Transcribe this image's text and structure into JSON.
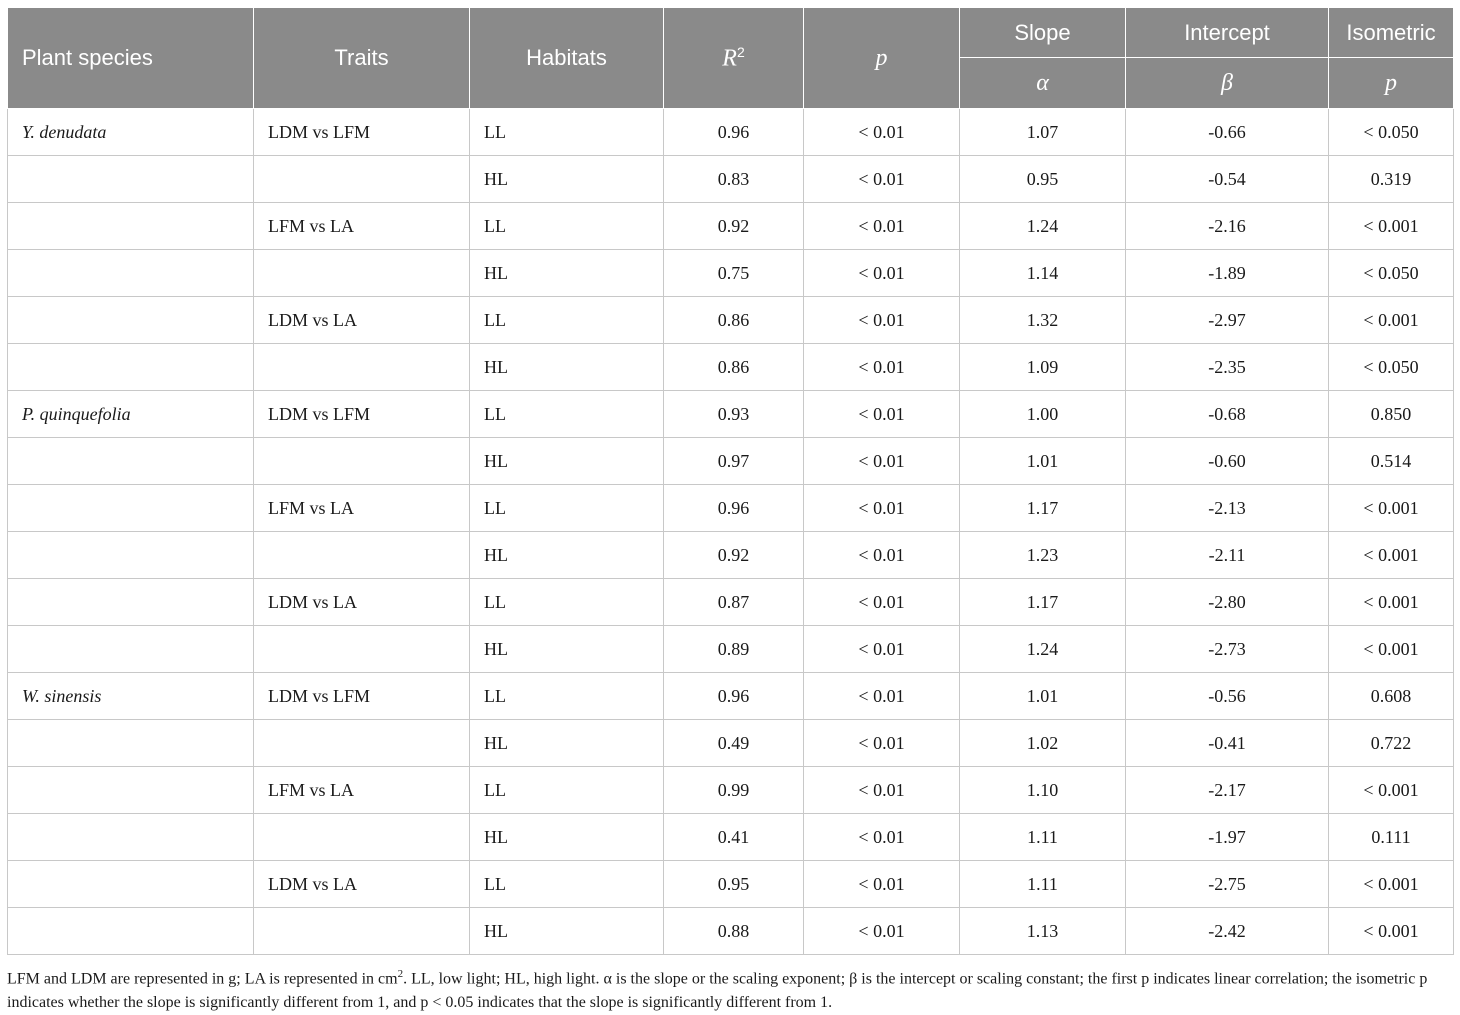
{
  "header": {
    "species": "Plant species",
    "traits": "Traits",
    "habitats": "Habitats",
    "r2_base": "R",
    "r2_sup": "2",
    "p": "p",
    "slope": "Slope",
    "slope_sym": "α",
    "intercept": "Intercept",
    "intercept_sym": "β",
    "isometric": "Isometric",
    "isometric_sym": "p"
  },
  "rows": [
    {
      "species": "Y. denudata",
      "traits": "LDM vs LFM",
      "habitat": "LL",
      "r2": "0.96",
      "p": "< 0.01",
      "slope": "1.07",
      "intercept": "-0.66",
      "iso_p": "< 0.050"
    },
    {
      "species": "",
      "traits": "",
      "habitat": "HL",
      "r2": "0.83",
      "p": "< 0.01",
      "slope": "0.95",
      "intercept": "-0.54",
      "iso_p": "0.319"
    },
    {
      "species": "",
      "traits": "LFM vs LA",
      "habitat": "LL",
      "r2": "0.92",
      "p": "< 0.01",
      "slope": "1.24",
      "intercept": "-2.16",
      "iso_p": "< 0.001"
    },
    {
      "species": "",
      "traits": "",
      "habitat": "HL",
      "r2": "0.75",
      "p": "< 0.01",
      "slope": "1.14",
      "intercept": "-1.89",
      "iso_p": "< 0.050"
    },
    {
      "species": "",
      "traits": "LDM vs LA",
      "habitat": "LL",
      "r2": "0.86",
      "p": "< 0.01",
      "slope": "1.32",
      "intercept": "-2.97",
      "iso_p": "< 0.001"
    },
    {
      "species": "",
      "traits": "",
      "habitat": "HL",
      "r2": "0.86",
      "p": "< 0.01",
      "slope": "1.09",
      "intercept": "-2.35",
      "iso_p": "< 0.050"
    },
    {
      "species": "P. quinquefolia",
      "traits": "LDM vs LFM",
      "habitat": "LL",
      "r2": "0.93",
      "p": "< 0.01",
      "slope": "1.00",
      "intercept": "-0.68",
      "iso_p": "0.850"
    },
    {
      "species": "",
      "traits": "",
      "habitat": "HL",
      "r2": "0.97",
      "p": "< 0.01",
      "slope": "1.01",
      "intercept": "-0.60",
      "iso_p": "0.514"
    },
    {
      "species": "",
      "traits": "LFM vs LA",
      "habitat": "LL",
      "r2": "0.96",
      "p": "< 0.01",
      "slope": "1.17",
      "intercept": "-2.13",
      "iso_p": "< 0.001"
    },
    {
      "species": "",
      "traits": "",
      "habitat": "HL",
      "r2": "0.92",
      "p": "< 0.01",
      "slope": "1.23",
      "intercept": "-2.11",
      "iso_p": "< 0.001"
    },
    {
      "species": "",
      "traits": "LDM vs LA",
      "habitat": "LL",
      "r2": "0.87",
      "p": "< 0.01",
      "slope": "1.17",
      "intercept": "-2.80",
      "iso_p": "< 0.001"
    },
    {
      "species": "",
      "traits": "",
      "habitat": "HL",
      "r2": "0.89",
      "p": "< 0.01",
      "slope": "1.24",
      "intercept": "-2.73",
      "iso_p": "< 0.001"
    },
    {
      "species": "W. sinensis",
      "traits": "LDM vs LFM",
      "habitat": "LL",
      "r2": "0.96",
      "p": "< 0.01",
      "slope": "1.01",
      "intercept": "-0.56",
      "iso_p": "0.608"
    },
    {
      "species": "",
      "traits": "",
      "habitat": "HL",
      "r2": "0.49",
      "p": "< 0.01",
      "slope": "1.02",
      "intercept": "-0.41",
      "iso_p": "0.722"
    },
    {
      "species": "",
      "traits": "LFM vs LA",
      "habitat": "LL",
      "r2": "0.99",
      "p": "< 0.01",
      "slope": "1.10",
      "intercept": "-2.17",
      "iso_p": "< 0.001"
    },
    {
      "species": "",
      "traits": "",
      "habitat": "HL",
      "r2": "0.41",
      "p": "< 0.01",
      "slope": "1.11",
      "intercept": "-1.97",
      "iso_p": "0.111"
    },
    {
      "species": "",
      "traits": "LDM vs LA",
      "habitat": "LL",
      "r2": "0.95",
      "p": "< 0.01",
      "slope": "1.11",
      "intercept": "-2.75",
      "iso_p": "< 0.001"
    },
    {
      "species": "",
      "traits": "",
      "habitat": "HL",
      "r2": "0.88",
      "p": "< 0.01",
      "slope": "1.13",
      "intercept": "-2.42",
      "iso_p": "< 0.001"
    }
  ],
  "footnote": {
    "part1": "LFM and LDM are represented in g; LA is represented in cm",
    "sup": "2",
    "part2": ". LL, low light; HL, high light. α is the slope or the scaling exponent; β is the intercept or scaling constant; the first p indicates linear correlation; the isometric p indicates whether the slope is significantly different from 1, and p < 0.05 indicates that the slope is significantly different from 1."
  }
}
